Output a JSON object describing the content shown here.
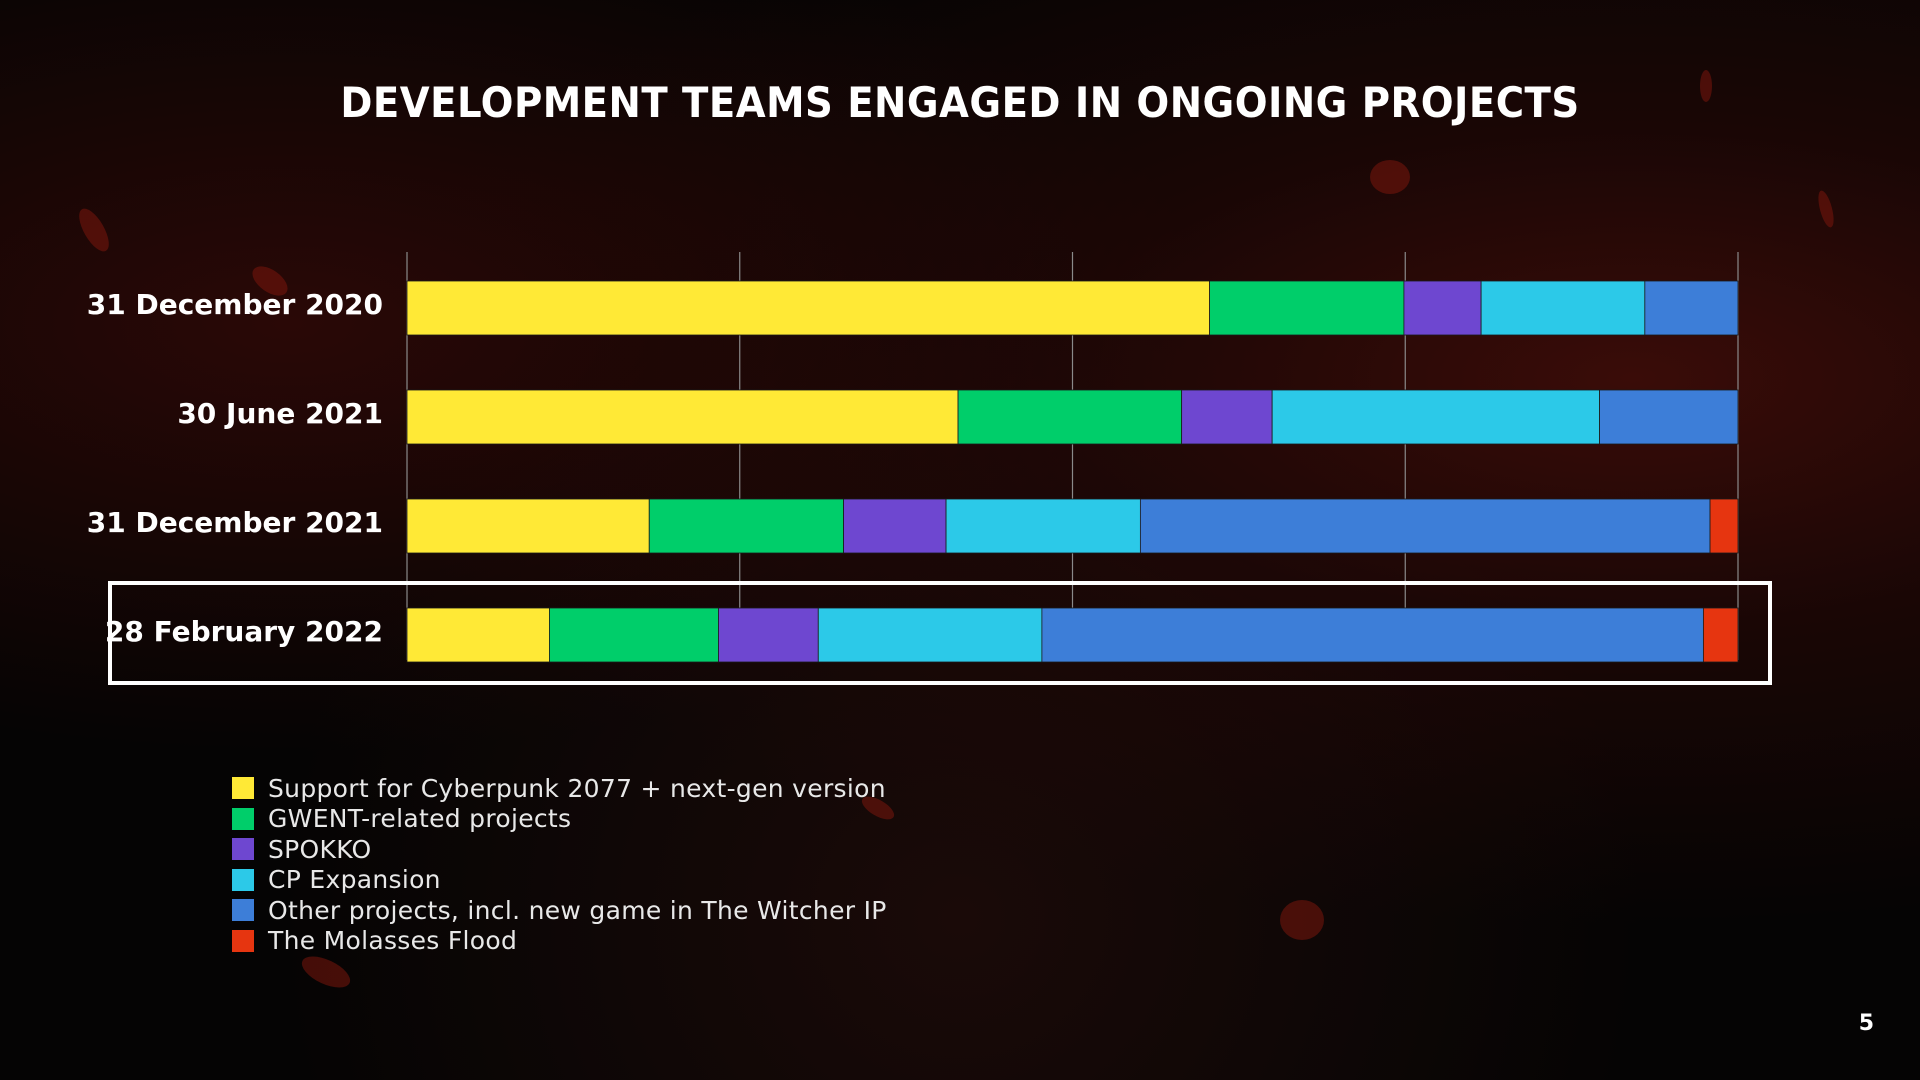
{
  "title": "DEVELOPMENT TEAMS ENGAGED IN ONGOING PROJECTS",
  "page_number": "5",
  "highlighted_category": "28 February 2022",
  "chart_data": {
    "type": "bar",
    "orientation": "horizontal",
    "stacked": true,
    "normalized_percent": true,
    "xlim": [
      0,
      100
    ],
    "grid": true,
    "legend_position": "bottom-left",
    "categories": [
      "31 December 2020",
      "30 June 2021",
      "31 December 2021",
      "28 February 2022"
    ],
    "series": [
      {
        "name": "Support for Cyberpunk 2077 + next-gen version",
        "color": "#FFE936",
        "values": [
          60.3,
          41.4,
          18.2,
          10.7
        ]
      },
      {
        "name": "GWENT-related projects",
        "color": "#00CE6A",
        "values": [
          14.6,
          16.8,
          14.6,
          12.7
        ]
      },
      {
        "name": "SPOKKO",
        "color": "#6E47D0",
        "values": [
          5.8,
          6.8,
          7.7,
          7.5
        ]
      },
      {
        "name": "CP Expansion",
        "color": "#2CC9E8",
        "values": [
          12.3,
          24.6,
          14.6,
          16.8
        ]
      },
      {
        "name": "Other projects, incl. new game in The Witcher IP",
        "color": "#3D7ED8",
        "values": [
          7.0,
          10.4,
          42.8,
          49.7
        ]
      },
      {
        "name": "The Molasses Flood",
        "color": "#E63510",
        "values": [
          0,
          0,
          2.1,
          2.6
        ]
      }
    ]
  }
}
